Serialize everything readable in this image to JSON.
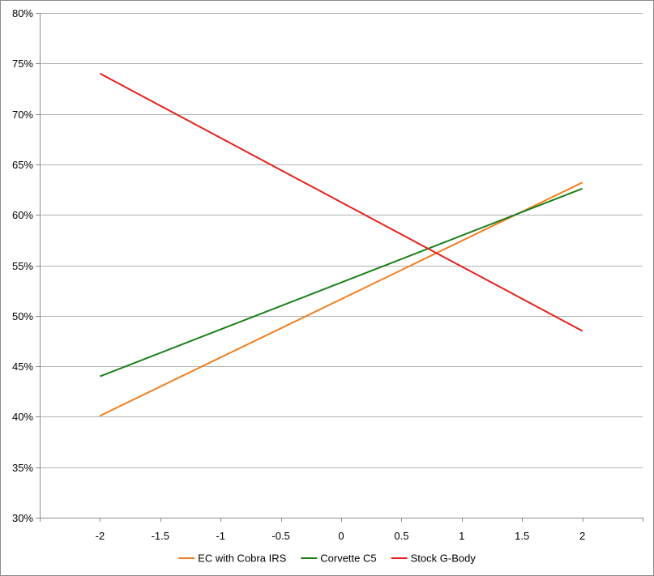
{
  "chart_data": {
    "type": "line",
    "title": "",
    "xlabel": "",
    "ylabel": "",
    "x": [
      -2,
      2
    ],
    "xlim": [
      -2.5,
      2.5
    ],
    "ylim": [
      30,
      80
    ],
    "x_tick_labels": [
      "-2",
      "-1.5",
      "-1",
      "-0.5",
      "0",
      "0.5",
      "1",
      "1.5",
      "2"
    ],
    "x_tick_values": [
      -2,
      -1.5,
      -1,
      -0.5,
      0,
      0.5,
      1,
      1.5,
      2
    ],
    "y_tick_labels": [
      "30%",
      "35%",
      "40%",
      "45%",
      "50%",
      "55%",
      "60%",
      "65%",
      "70%",
      "75%",
      "80%"
    ],
    "y_tick_values": [
      30,
      35,
      40,
      45,
      50,
      55,
      60,
      65,
      70,
      75,
      80
    ],
    "grid": "horizontal",
    "legend_position": "bottom",
    "series": [
      {
        "name": "EC with Cobra IRS",
        "color": "#f07f21",
        "values": [
          40.1,
          63.2
        ]
      },
      {
        "name": "Corvette C5",
        "color": "#1a7f1a",
        "values": [
          44.0,
          62.6
        ]
      },
      {
        "name": "Stock G-Body",
        "color": "#e4211c",
        "values": [
          74.0,
          48.5
        ]
      }
    ]
  }
}
